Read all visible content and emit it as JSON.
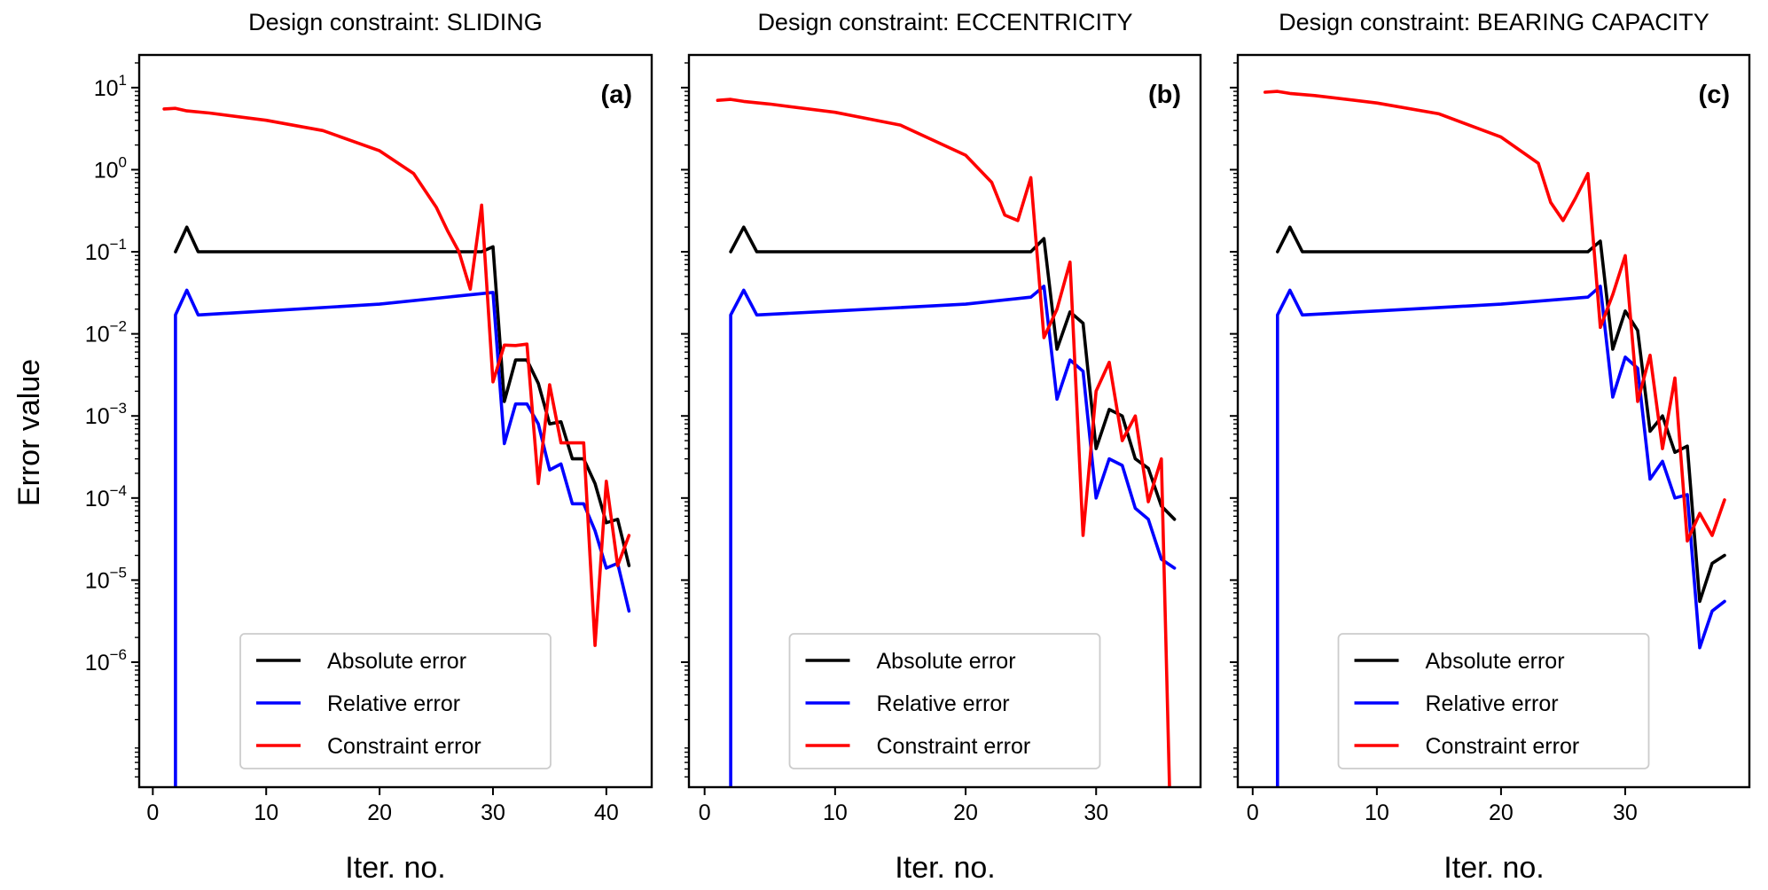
{
  "figure": {
    "ylabel": "Error value"
  },
  "colors": {
    "absolute": "#000000",
    "relative": "#0000ff",
    "constraint": "#ff0000"
  },
  "legend": {
    "placement": "lower-center",
    "entries": [
      "Absolute error",
      "Relative error",
      "Constraint error"
    ]
  },
  "chart_data": [
    {
      "type": "line",
      "title": "Design constraint: SLIDING",
      "panel_label": "(a)",
      "xlabel": "Iter. no.",
      "ylabel": "Error value",
      "yscale": "log",
      "xlim": [
        -1.2,
        44
      ],
      "ylim": [
        3e-08,
        25
      ],
      "xticks": [
        0,
        10,
        20,
        30,
        40
      ],
      "yticks": [
        1e-06,
        1e-05,
        0.0001,
        0.001,
        0.01,
        0.1,
        1,
        10
      ],
      "ytick_labels": [
        [
          "10",
          "−6"
        ],
        [
          "10",
          "−5"
        ],
        [
          "10",
          "−4"
        ],
        [
          "10",
          "−3"
        ],
        [
          "10",
          "−2"
        ],
        [
          "10",
          "−1"
        ],
        [
          "10",
          "0"
        ],
        [
          "10",
          "1"
        ]
      ],
      "series": [
        {
          "name": "Absolute error",
          "color": "#000000",
          "x": [
            2,
            3,
            4,
            10,
            20,
            29,
            30,
            31,
            32,
            33,
            34,
            35,
            36,
            37,
            38,
            39,
            40,
            41,
            42
          ],
          "y": [
            0.1,
            0.2,
            0.1,
            0.1,
            0.1,
            0.1,
            0.115,
            0.0015,
            0.0048,
            0.0048,
            0.0025,
            0.0008,
            0.00085,
            0.0003,
            0.0003,
            0.00015,
            5e-05,
            5.5e-05,
            1.5e-05
          ]
        },
        {
          "name": "Relative error",
          "color": "#0000ff",
          "x": [
            2,
            2,
            3,
            4,
            10,
            20,
            30,
            31,
            32,
            33,
            34,
            35,
            36,
            37,
            38,
            39,
            40,
            41,
            42
          ],
          "y": [
            1e-08,
            0.017,
            0.034,
            0.017,
            0.019,
            0.023,
            0.032,
            0.00046,
            0.0014,
            0.0014,
            0.0008,
            0.00022,
            0.00026,
            8.5e-05,
            8.5e-05,
            4e-05,
            1.4e-05,
            1.6e-05,
            4.2e-06
          ]
        },
        {
          "name": "Constraint error",
          "color": "#ff0000",
          "x": [
            1,
            2,
            3,
            5,
            10,
            15,
            20,
            23,
            25,
            26,
            27,
            28,
            29,
            30,
            31,
            32,
            33,
            34,
            35,
            36,
            37,
            38,
            39,
            40,
            41,
            42
          ],
          "y": [
            5.5,
            5.6,
            5.2,
            4.9,
            4.0,
            3.0,
            1.7,
            0.9,
            0.35,
            0.18,
            0.1,
            0.035,
            0.37,
            0.0026,
            0.0073,
            0.0072,
            0.0075,
            0.00015,
            0.0024,
            0.00047,
            0.00047,
            0.00047,
            1.6e-06,
            0.00016,
            1.5e-05,
            3.5e-05
          ]
        }
      ]
    },
    {
      "type": "line",
      "title": "Design constraint: ECCENTRICITY",
      "panel_label": "(b)",
      "xlabel": "Iter. no.",
      "ylabel": "",
      "yscale": "log",
      "xlim": [
        -1.2,
        38
      ],
      "ylim": [
        3e-08,
        25
      ],
      "xticks": [
        0,
        10,
        20,
        30
      ],
      "yticks": [
        1e-06,
        1e-05,
        0.0001,
        0.001,
        0.01,
        0.1,
        1,
        10
      ],
      "series": [
        {
          "name": "Absolute error",
          "color": "#000000",
          "x": [
            2,
            3,
            4,
            10,
            20,
            25,
            26,
            27,
            28,
            29,
            30,
            31,
            32,
            33,
            34,
            35,
            36
          ],
          "y": [
            0.1,
            0.2,
            0.1,
            0.1,
            0.1,
            0.1,
            0.145,
            0.0065,
            0.0185,
            0.0135,
            0.0004,
            0.0012,
            0.001,
            0.0003,
            0.00023,
            8e-05,
            5.5e-05
          ]
        },
        {
          "name": "Relative error",
          "color": "#0000ff",
          "x": [
            2,
            2,
            3,
            4,
            10,
            20,
            25,
            26,
            27,
            28,
            29,
            30,
            31,
            32,
            33,
            34,
            35,
            36
          ],
          "y": [
            1e-08,
            0.017,
            0.034,
            0.017,
            0.019,
            0.023,
            0.028,
            0.038,
            0.0016,
            0.0048,
            0.0035,
            0.0001,
            0.0003,
            0.00025,
            7.5e-05,
            5.5e-05,
            1.8e-05,
            1.4e-05
          ]
        },
        {
          "name": "Constraint error",
          "color": "#ff0000",
          "x": [
            1,
            2,
            3,
            5,
            10,
            15,
            20,
            22,
            23,
            24,
            25,
            26,
            27,
            28,
            29,
            30,
            31,
            32,
            33,
            34,
            35,
            35.7
          ],
          "y": [
            7.0,
            7.2,
            6.8,
            6.3,
            5.0,
            3.5,
            1.5,
            0.7,
            0.28,
            0.24,
            0.8,
            0.009,
            0.02,
            0.075,
            3.5e-05,
            0.002,
            0.0045,
            0.0005,
            0.001,
            9e-05,
            0.0003,
            1e-08
          ]
        }
      ]
    },
    {
      "type": "line",
      "title": "Design constraint: BEARING CAPACITY",
      "panel_label": "(c)",
      "xlabel": "Iter. no.",
      "ylabel": "",
      "yscale": "log",
      "xlim": [
        -1.2,
        40
      ],
      "ylim": [
        3e-08,
        25
      ],
      "xticks": [
        0,
        10,
        20,
        30
      ],
      "yticks": [
        1e-06,
        1e-05,
        0.0001,
        0.001,
        0.01,
        0.1,
        1,
        10
      ],
      "series": [
        {
          "name": "Absolute error",
          "color": "#000000",
          "x": [
            2,
            3,
            4,
            10,
            20,
            27,
            28,
            29,
            30,
            31,
            32,
            33,
            34,
            35,
            36,
            37,
            38
          ],
          "y": [
            0.1,
            0.2,
            0.1,
            0.1,
            0.1,
            0.1,
            0.135,
            0.0065,
            0.019,
            0.011,
            0.00065,
            0.001,
            0.00036,
            0.00043,
            5.5e-06,
            1.6e-05,
            2e-05
          ]
        },
        {
          "name": "Relative error",
          "color": "#0000ff",
          "x": [
            2,
            2,
            3,
            4,
            10,
            20,
            27,
            28,
            29,
            30,
            31,
            32,
            33,
            34,
            35,
            36,
            37,
            38
          ],
          "y": [
            1e-08,
            0.017,
            0.034,
            0.017,
            0.019,
            0.023,
            0.028,
            0.038,
            0.0017,
            0.0052,
            0.0038,
            0.00017,
            0.00028,
            0.0001,
            0.00011,
            1.5e-06,
            4.2e-06,
            5.5e-06
          ]
        },
        {
          "name": "Constraint error",
          "color": "#ff0000",
          "x": [
            1,
            2,
            3,
            5,
            10,
            15,
            20,
            23,
            24,
            25,
            26,
            27,
            28,
            29,
            30,
            31,
            32,
            33,
            34,
            35,
            36,
            37,
            38
          ],
          "y": [
            8.8,
            9.0,
            8.5,
            8.0,
            6.5,
            4.8,
            2.5,
            1.2,
            0.4,
            0.24,
            0.45,
            0.9,
            0.012,
            0.03,
            0.09,
            0.0015,
            0.0055,
            0.0004,
            0.0029,
            3e-05,
            6.5e-05,
            3.5e-05,
            9.5e-05
          ]
        }
      ]
    }
  ]
}
